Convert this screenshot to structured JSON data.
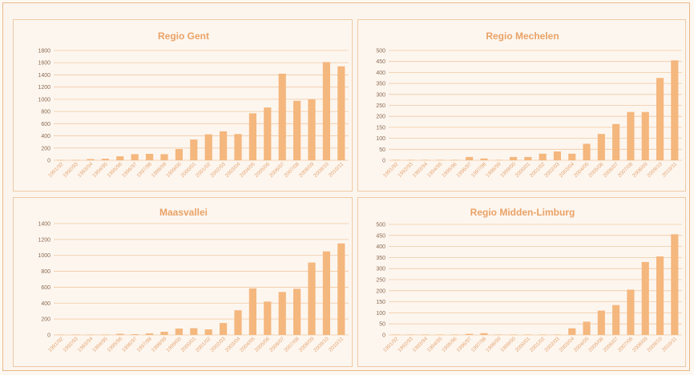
{
  "chart_data": [
    {
      "type": "bar",
      "title": "Regio Gent",
      "categories": [
        "1991/92",
        "1992/93",
        "1993/94",
        "1994/95",
        "1995/96",
        "1996/97",
        "1997/98",
        "1998/99",
        "1999/00",
        "2000/01",
        "2001/02",
        "2002/03",
        "2003/04",
        "2004/05",
        "2005/06",
        "2006/07",
        "2007/08",
        "2008/09",
        "2009/10",
        "2010/11"
      ],
      "values": [
        5,
        5,
        20,
        25,
        65,
        100,
        105,
        100,
        185,
        340,
        425,
        475,
        430,
        770,
        865,
        1420,
        975,
        1000,
        1610,
        1540
      ],
      "ylim": [
        0,
        1800
      ],
      "yticks": [
        0,
        200,
        400,
        600,
        800,
        1000,
        1200,
        1400,
        1600,
        1800
      ],
      "grid": true,
      "color": "#f4b77e"
    },
    {
      "type": "bar",
      "title": "Regio Mechelen",
      "categories": [
        "1991/92",
        "1992/93",
        "1993/94",
        "1994/95",
        "1995/96",
        "1996/97",
        "1997/98",
        "1998/99",
        "1999/00",
        "2000/01",
        "2001/02",
        "2002/03",
        "2003/04",
        "2004/05",
        "2005/06",
        "2006/07",
        "2007/08",
        "2008/09",
        "2009/10",
        "2010/11"
      ],
      "values": [
        2,
        2,
        2,
        2,
        2,
        15,
        8,
        2,
        15,
        15,
        30,
        40,
        30,
        75,
        120,
        165,
        220,
        220,
        375,
        455
      ],
      "ylim": [
        0,
        500
      ],
      "yticks": [
        0,
        50,
        100,
        150,
        200,
        250,
        300,
        350,
        400,
        450,
        500
      ],
      "grid": true,
      "color": "#f4b77e"
    },
    {
      "type": "bar",
      "title": "Maasvallei",
      "categories": [
        "1991/92",
        "1992/93",
        "1993/94",
        "1994/95",
        "1995/96",
        "1996/97",
        "1997/98",
        "1998/99",
        "1999/00",
        "2000/01",
        "2001/02",
        "2002/03",
        "2003/04",
        "2004/05",
        "2005/06",
        "2006/07",
        "2007/08",
        "2008/09",
        "2009/10",
        "2010/11"
      ],
      "values": [
        5,
        5,
        5,
        5,
        15,
        10,
        20,
        40,
        80,
        85,
        70,
        150,
        310,
        585,
        420,
        540,
        580,
        910,
        1050,
        1150
      ],
      "ylim": [
        0,
        1400
      ],
      "yticks": [
        0,
        200,
        400,
        600,
        800,
        1000,
        1200,
        1400
      ],
      "grid": true,
      "color": "#f4b77e"
    },
    {
      "type": "bar",
      "title": "Regio Midden-Limburg",
      "categories": [
        "1991/92",
        "1992/93",
        "1993/94",
        "1994/95",
        "1995/96",
        "1996/97",
        "1997/98",
        "1998/99",
        "1999/00",
        "2000/01",
        "2001/02",
        "2002/03",
        "2003/04",
        "2004/05",
        "2005/06",
        "2006/07",
        "2007/08",
        "2008/09",
        "2009/10",
        "2010/11"
      ],
      "values": [
        2,
        2,
        2,
        2,
        2,
        5,
        8,
        2,
        2,
        2,
        2,
        2,
        30,
        60,
        110,
        135,
        205,
        330,
        355,
        455
      ],
      "ylim": [
        0,
        500
      ],
      "yticks": [
        0,
        50,
        100,
        150,
        200,
        250,
        300,
        350,
        400,
        450,
        500
      ],
      "grid": true,
      "color": "#f4b77e"
    }
  ]
}
